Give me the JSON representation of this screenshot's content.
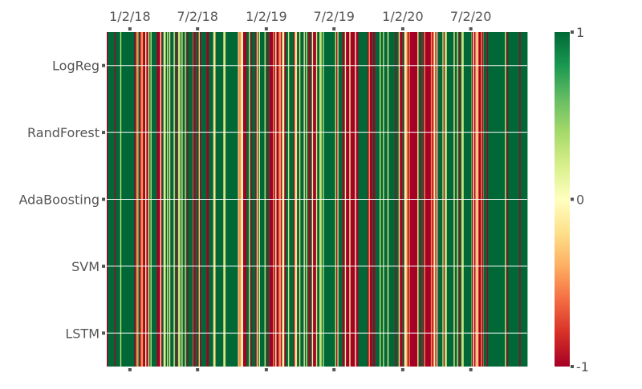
{
  "chart_data": {
    "type": "heatmap",
    "title": "",
    "xlabel": "",
    "ylabel": "",
    "rows": [
      "LogReg",
      "RandForest",
      "AdaBoosting",
      "SVM",
      "LSTM"
    ],
    "x_range": [
      "2017-11-01",
      "2020-11-30"
    ],
    "x_tick_labels": [
      "1/2/18",
      "7/2/18",
      "1/2/19",
      "7/2/19",
      "1/2/20",
      "7/2/20"
    ],
    "x_tick_dates": [
      "2018-01-02",
      "2018-07-02",
      "2019-01-02",
      "2019-07-02",
      "2020-01-02",
      "2020-07-02"
    ],
    "x_axis_position": "top",
    "colorbar": {
      "colormap": "RdYlGn",
      "range": [
        -1,
        1
      ],
      "tick_labels": [
        "1",
        "0",
        "-1"
      ],
      "tick_values": [
        1,
        0,
        -1
      ]
    },
    "grid": true,
    "colors": {
      "negative": "#a50026",
      "neutral": "#ffffbf",
      "positive": "#006837"
    },
    "value_pattern_note_free": true,
    "segments": [
      {
        "start": "2017-11-01",
        "end": "2018-01-10",
        "value": 1
      },
      {
        "start": "2018-01-10",
        "end": "2018-02-20",
        "value": -1
      },
      {
        "start": "2018-02-20",
        "end": "2018-03-15",
        "value": 1
      },
      {
        "start": "2018-03-15",
        "end": "2018-04-05",
        "value": -1
      },
      {
        "start": "2018-04-05",
        "end": "2018-06-20",
        "value": 1
      },
      {
        "start": "2018-06-20",
        "end": "2018-07-05",
        "value": -1
      },
      {
        "start": "2018-07-05",
        "end": "2018-10-20",
        "value": 1
      },
      {
        "start": "2018-10-20",
        "end": "2018-11-10",
        "value": -1
      },
      {
        "start": "2018-11-10",
        "end": "2019-01-05",
        "value": 1
      },
      {
        "start": "2019-01-05",
        "end": "2019-02-20",
        "value": -1
      },
      {
        "start": "2019-02-20",
        "end": "2019-04-25",
        "value": 1
      },
      {
        "start": "2019-04-25",
        "end": "2019-05-15",
        "value": -1
      },
      {
        "start": "2019-05-15",
        "end": "2019-07-25",
        "value": 1
      },
      {
        "start": "2019-07-25",
        "end": "2019-09-05",
        "value": -1
      },
      {
        "start": "2019-09-05",
        "end": "2019-09-30",
        "value": 1
      },
      {
        "start": "2019-09-30",
        "end": "2019-10-20",
        "value": -1
      },
      {
        "start": "2019-10-20",
        "end": "2019-12-25",
        "value": 1
      },
      {
        "start": "2019-12-25",
        "end": "2020-02-10",
        "value": -1
      },
      {
        "start": "2020-02-10",
        "end": "2020-02-25",
        "value": 1
      },
      {
        "start": "2020-02-25",
        "end": "2020-04-05",
        "value": -1
      },
      {
        "start": "2020-04-05",
        "end": "2020-07-05",
        "value": 1
      },
      {
        "start": "2020-07-05",
        "end": "2020-08-05",
        "value": -1
      },
      {
        "start": "2020-08-05",
        "end": "2020-11-30",
        "value": 1
      }
    ]
  }
}
